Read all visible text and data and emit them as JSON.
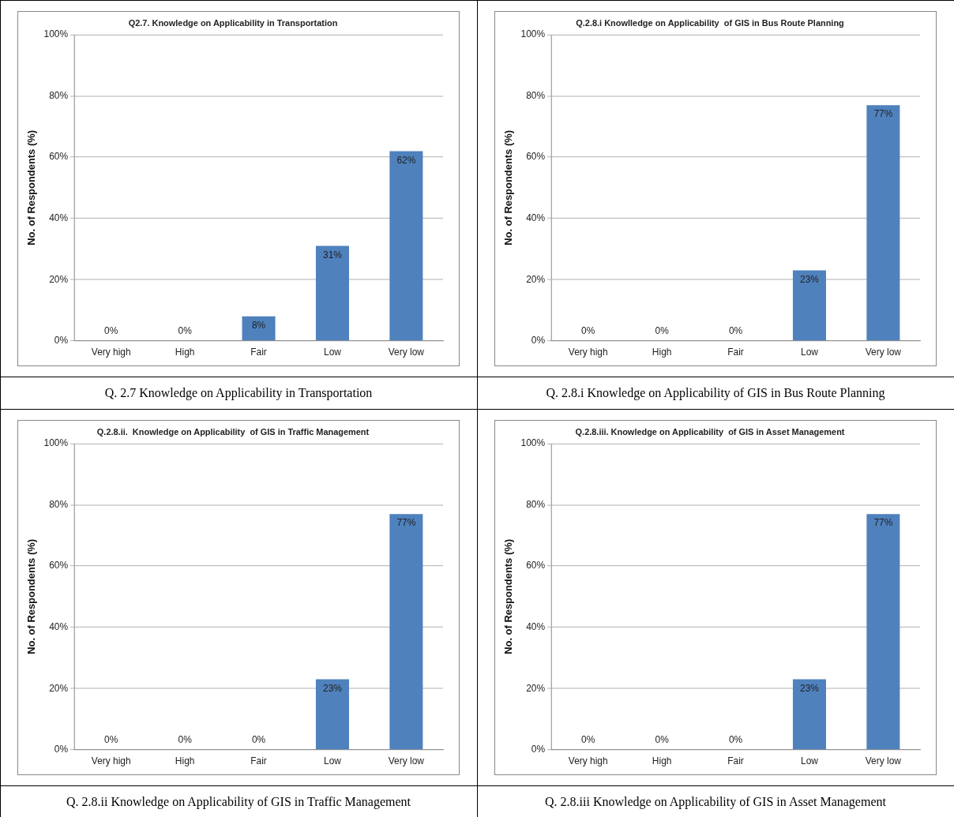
{
  "chart_data": [
    {
      "type": "bar",
      "title": "Q2.7. Knowledge on Applicability in Transportation",
      "ylabel": "No. of Respondents (%)",
      "categories": [
        "Very high",
        "High",
        "Fair",
        "Low",
        "Very low"
      ],
      "values": [
        0,
        0,
        8,
        31,
        62
      ],
      "value_labels": [
        "0%",
        "0%",
        "8%",
        "31%",
        "62%"
      ],
      "color": "#4f81bd",
      "ylim": [
        0,
        100
      ],
      "yticks": [
        {
          "value": 0,
          "label": "0%"
        },
        {
          "value": 20,
          "label": "20%"
        },
        {
          "value": 40,
          "label": "40%"
        },
        {
          "value": 60,
          "label": "60%"
        },
        {
          "value": 80,
          "label": "80%"
        },
        {
          "value": 100,
          "label": "100%"
        }
      ],
      "grid": "y",
      "annotations": [
        "Q. 2.7 Knowledge on Applicability in Transportation"
      ]
    },
    {
      "type": "bar",
      "title": "Q.2.8.i Knowlledge on Applicability  of GIS in Bus Route Planning",
      "ylabel": "No. of Respondents (%)",
      "categories": [
        "Very high",
        "High",
        "Fair",
        "Low",
        "Very low"
      ],
      "values": [
        0,
        0,
        0,
        23,
        77
      ],
      "value_labels": [
        "0%",
        "0%",
        "0%",
        "23%",
        "77%"
      ],
      "color": "#4f81bd",
      "ylim": [
        0,
        100
      ],
      "yticks": [
        {
          "value": 0,
          "label": "0%"
        },
        {
          "value": 20,
          "label": "20%"
        },
        {
          "value": 40,
          "label": "40%"
        },
        {
          "value": 60,
          "label": "60%"
        },
        {
          "value": 80,
          "label": "80%"
        },
        {
          "value": 100,
          "label": "100%"
        }
      ],
      "grid": "y",
      "annotations": [
        "Q. 2.8.i Knowledge on Applicability of GIS in Bus Route Planning"
      ]
    },
    {
      "type": "bar",
      "title": "Q.2.8.ii.  Knowledge on Applicability  of GIS in Traffic Management",
      "ylabel": "No. of Respondents (%)",
      "categories": [
        "Very high",
        "High",
        "Fair",
        "Low",
        "Very low"
      ],
      "values": [
        0,
        0,
        0,
        23,
        77
      ],
      "value_labels": [
        "0%",
        "0%",
        "0%",
        "23%",
        "77%"
      ],
      "color": "#4f81bd",
      "ylim": [
        0,
        100
      ],
      "yticks": [
        {
          "value": 0,
          "label": "0%"
        },
        {
          "value": 20,
          "label": "20%"
        },
        {
          "value": 40,
          "label": "40%"
        },
        {
          "value": 60,
          "label": "60%"
        },
        {
          "value": 80,
          "label": "80%"
        },
        {
          "value": 100,
          "label": "100%"
        }
      ],
      "grid": "y",
      "annotations": [
        "Q. 2.8.ii Knowledge on Applicability of GIS in Traffic Management"
      ]
    },
    {
      "type": "bar",
      "title": "Q.2.8.iii. Knowledge on Applicability  of GIS in Asset Management",
      "ylabel": "No. of Respondents (%)",
      "categories": [
        "Very high",
        "High",
        "Fair",
        "Low",
        "Very low"
      ],
      "values": [
        0,
        0,
        0,
        23,
        77
      ],
      "value_labels": [
        "0%",
        "0%",
        "0%",
        "23%",
        "77%"
      ],
      "color": "#4f81bd",
      "ylim": [
        0,
        100
      ],
      "yticks": [
        {
          "value": 0,
          "label": "0%"
        },
        {
          "value": 20,
          "label": "20%"
        },
        {
          "value": 40,
          "label": "40%"
        },
        {
          "value": 60,
          "label": "60%"
        },
        {
          "value": 80,
          "label": "80%"
        },
        {
          "value": 100,
          "label": "100%"
        }
      ],
      "grid": "y",
      "annotations": [
        "Q. 2.8.iii Knowledge on Applicability of GIS in Asset Management"
      ]
    }
  ]
}
